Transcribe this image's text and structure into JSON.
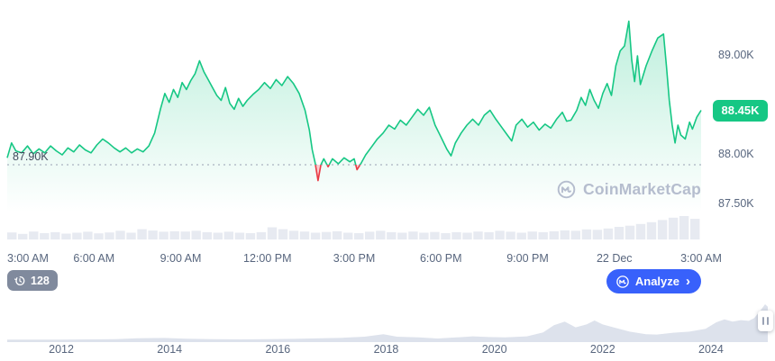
{
  "watermark": {
    "text": "CoinMarketCap"
  },
  "controls": {
    "history_count": "128",
    "analyze_label": "Analyze",
    "analyze_chevron": "›"
  },
  "colors": {
    "up_green": "#16c784",
    "down_red": "#ea3943",
    "analyze_blue": "#3861fb",
    "history_badge_gray": "#808a9d",
    "axis_text": "#58667e",
    "volume_gray": "#e7eaf1",
    "navigator_gray": "#dde2ec",
    "watermark_gray": "#b5bdce"
  },
  "chart_data": [
    {
      "type": "area",
      "name": "btc-price-24h",
      "x_unit": "hours since 3:00 AM",
      "x_ticks": [
        "3:00 AM",
        "6:00 AM",
        "9:00 AM",
        "12:00 PM",
        "3:00 PM",
        "6:00 PM",
        "9:00 PM",
        "22 Dec",
        "3:00 AM"
      ],
      "y_ticks": [
        {
          "label": "89.00K",
          "value": 89.0
        },
        {
          "label": "88.00K",
          "value": 88.0
        },
        {
          "label": "87.50K",
          "value": 87.5
        }
      ],
      "ylim": [
        87.1,
        89.56
      ],
      "baseline": 87.9,
      "baseline_label": "87.90K",
      "last_price": 88.45,
      "last_price_label": "88.45K",
      "up_color": "#16c784",
      "down_color": "#ea3943",
      "grid": false,
      "points": [
        [
          0,
          87.97
        ],
        [
          0.15,
          88.12
        ],
        [
          0.3,
          88.04
        ],
        [
          0.5,
          88.02
        ],
        [
          0.7,
          88.09
        ],
        [
          0.9,
          88.01
        ],
        [
          1.1,
          88.06
        ],
        [
          1.3,
          88.02
        ],
        [
          1.5,
          88.09
        ],
        [
          1.7,
          88.04
        ],
        [
          1.9,
          88.0
        ],
        [
          2.1,
          88.07
        ],
        [
          2.3,
          88.03
        ],
        [
          2.5,
          88.1
        ],
        [
          2.7,
          88.05
        ],
        [
          2.9,
          88.02
        ],
        [
          3.1,
          88.1
        ],
        [
          3.3,
          88.16
        ],
        [
          3.5,
          88.12
        ],
        [
          3.7,
          88.07
        ],
        [
          3.9,
          88.03
        ],
        [
          4.1,
          88.07
        ],
        [
          4.3,
          88.02
        ],
        [
          4.5,
          88.06
        ],
        [
          4.7,
          88.03
        ],
        [
          4.9,
          88.09
        ],
        [
          5.1,
          88.22
        ],
        [
          5.3,
          88.46
        ],
        [
          5.45,
          88.62
        ],
        [
          5.6,
          88.53
        ],
        [
          5.75,
          88.66
        ],
        [
          5.9,
          88.58
        ],
        [
          6.05,
          88.73
        ],
        [
          6.2,
          88.66
        ],
        [
          6.35,
          88.75
        ],
        [
          6.5,
          88.82
        ],
        [
          6.65,
          88.95
        ],
        [
          6.8,
          88.84
        ],
        [
          6.95,
          88.76
        ],
        [
          7.1,
          88.68
        ],
        [
          7.25,
          88.6
        ],
        [
          7.4,
          88.55
        ],
        [
          7.55,
          88.68
        ],
        [
          7.7,
          88.52
        ],
        [
          7.85,
          88.46
        ],
        [
          8.0,
          88.57
        ],
        [
          8.15,
          88.49
        ],
        [
          8.3,
          88.55
        ],
        [
          8.5,
          88.61
        ],
        [
          8.7,
          88.66
        ],
        [
          8.9,
          88.73
        ],
        [
          9.1,
          88.67
        ],
        [
          9.3,
          88.76
        ],
        [
          9.5,
          88.7
        ],
        [
          9.7,
          88.79
        ],
        [
          9.9,
          88.72
        ],
        [
          10.1,
          88.62
        ],
        [
          10.3,
          88.45
        ],
        [
          10.45,
          88.25
        ],
        [
          10.55,
          88.05
        ],
        [
          10.65,
          87.92
        ],
        [
          10.75,
          87.74
        ],
        [
          10.85,
          87.9
        ],
        [
          10.95,
          87.96
        ],
        [
          11.1,
          87.88
        ],
        [
          11.25,
          87.96
        ],
        [
          11.45,
          87.91
        ],
        [
          11.65,
          87.97
        ],
        [
          11.85,
          87.93
        ],
        [
          12.0,
          87.96
        ],
        [
          12.1,
          87.85
        ],
        [
          12.25,
          87.92
        ],
        [
          12.4,
          88.0
        ],
        [
          12.6,
          88.08
        ],
        [
          12.8,
          88.16
        ],
        [
          13.0,
          88.22
        ],
        [
          13.2,
          88.3
        ],
        [
          13.4,
          88.26
        ],
        [
          13.6,
          88.35
        ],
        [
          13.8,
          88.3
        ],
        [
          14.0,
          88.38
        ],
        [
          14.2,
          88.46
        ],
        [
          14.4,
          88.4
        ],
        [
          14.6,
          88.48
        ],
        [
          14.8,
          88.3
        ],
        [
          15.0,
          88.18
        ],
        [
          15.2,
          88.06
        ],
        [
          15.35,
          87.99
        ],
        [
          15.5,
          88.12
        ],
        [
          15.7,
          88.22
        ],
        [
          15.9,
          88.3
        ],
        [
          16.1,
          88.36
        ],
        [
          16.3,
          88.3
        ],
        [
          16.5,
          88.4
        ],
        [
          16.7,
          88.45
        ],
        [
          16.9,
          88.36
        ],
        [
          17.1,
          88.28
        ],
        [
          17.3,
          88.2
        ],
        [
          17.45,
          88.14
        ],
        [
          17.6,
          88.3
        ],
        [
          17.8,
          88.36
        ],
        [
          18.0,
          88.28
        ],
        [
          18.2,
          88.33
        ],
        [
          18.4,
          88.25
        ],
        [
          18.6,
          88.31
        ],
        [
          18.8,
          88.27
        ],
        [
          19.0,
          88.36
        ],
        [
          19.2,
          88.43
        ],
        [
          19.35,
          88.34
        ],
        [
          19.5,
          88.35
        ],
        [
          19.7,
          88.45
        ],
        [
          19.85,
          88.58
        ],
        [
          20.0,
          88.5
        ],
        [
          20.15,
          88.66
        ],
        [
          20.3,
          88.55
        ],
        [
          20.45,
          88.47
        ],
        [
          20.6,
          88.62
        ],
        [
          20.75,
          88.72
        ],
        [
          20.9,
          88.6
        ],
        [
          21.05,
          88.9
        ],
        [
          21.2,
          89.05
        ],
        [
          21.35,
          89.1
        ],
        [
          21.5,
          89.35
        ],
        [
          21.6,
          88.96
        ],
        [
          21.7,
          88.74
        ],
        [
          21.8,
          89.0
        ],
        [
          21.9,
          88.71
        ],
        [
          22.1,
          88.9
        ],
        [
          22.3,
          89.05
        ],
        [
          22.5,
          89.18
        ],
        [
          22.7,
          89.22
        ],
        [
          22.8,
          88.9
        ],
        [
          22.9,
          88.55
        ],
        [
          23.0,
          88.3
        ],
        [
          23.1,
          88.12
        ],
        [
          23.2,
          88.3
        ],
        [
          23.3,
          88.2
        ],
        [
          23.45,
          88.16
        ],
        [
          23.6,
          88.33
        ],
        [
          23.7,
          88.26
        ],
        [
          23.85,
          88.38
        ],
        [
          24.0,
          88.45
        ]
      ],
      "volume_normalized": [
        0.3,
        0.24,
        0.34,
        0.27,
        0.31,
        0.25,
        0.29,
        0.33,
        0.26,
        0.3,
        0.37,
        0.29,
        0.44,
        0.38,
        0.33,
        0.35,
        0.34,
        0.37,
        0.31,
        0.29,
        0.33,
        0.29,
        0.27,
        0.31,
        0.52,
        0.44,
        0.37,
        0.34,
        0.29,
        0.32,
        0.35,
        0.29,
        0.27,
        0.33,
        0.37,
        0.31,
        0.29,
        0.34,
        0.29,
        0.32,
        0.27,
        0.31,
        0.29,
        0.34,
        0.31,
        0.37,
        0.33,
        0.29,
        0.34,
        0.31,
        0.35,
        0.39,
        0.37,
        0.43,
        0.41,
        0.47,
        0.54,
        0.59,
        0.66,
        0.74,
        0.83,
        0.93,
        1.0,
        0.88
      ]
    },
    {
      "type": "area",
      "name": "all-time-history-navigator",
      "x_unit": "year",
      "year_ticks": [
        2012,
        2014,
        2016,
        2018,
        2020,
        2022,
        2024
      ],
      "fill_color": "#dde2ec",
      "points": [
        [
          2011,
          0.02
        ],
        [
          2011.5,
          0.02
        ],
        [
          2012,
          0.02
        ],
        [
          2012.5,
          0.025
        ],
        [
          2013,
          0.03
        ],
        [
          2013.4,
          0.055
        ],
        [
          2013.9,
          0.065
        ],
        [
          2014.3,
          0.045
        ],
        [
          2014.8,
          0.03
        ],
        [
          2015.3,
          0.025
        ],
        [
          2015.8,
          0.03
        ],
        [
          2016.3,
          0.04
        ],
        [
          2016.8,
          0.055
        ],
        [
          2017.2,
          0.07
        ],
        [
          2017.6,
          0.1
        ],
        [
          2017.95,
          0.17
        ],
        [
          2018.2,
          0.1
        ],
        [
          2018.6,
          0.08
        ],
        [
          2018.95,
          0.05
        ],
        [
          2019.3,
          0.08
        ],
        [
          2019.6,
          0.11
        ],
        [
          2019.9,
          0.09
        ],
        [
          2020.2,
          0.08
        ],
        [
          2020.6,
          0.11
        ],
        [
          2020.9,
          0.22
        ],
        [
          2021.1,
          0.42
        ],
        [
          2021.3,
          0.52
        ],
        [
          2021.5,
          0.36
        ],
        [
          2021.7,
          0.44
        ],
        [
          2021.85,
          0.55
        ],
        [
          2022.0,
          0.44
        ],
        [
          2022.2,
          0.36
        ],
        [
          2022.5,
          0.24
        ],
        [
          2022.8,
          0.17
        ],
        [
          2023.0,
          0.16
        ],
        [
          2023.3,
          0.21
        ],
        [
          2023.6,
          0.24
        ],
        [
          2023.9,
          0.32
        ],
        [
          2024.1,
          0.5
        ],
        [
          2024.25,
          0.58
        ],
        [
          2024.4,
          0.52
        ],
        [
          2024.55,
          0.56
        ],
        [
          2024.7,
          0.54
        ],
        [
          2024.8,
          0.62
        ],
        [
          2024.9,
          0.8
        ],
        [
          2024.95,
          0.9
        ],
        [
          2025.0,
          1.0
        ],
        [
          2025.05,
          0.93
        ]
      ]
    }
  ]
}
